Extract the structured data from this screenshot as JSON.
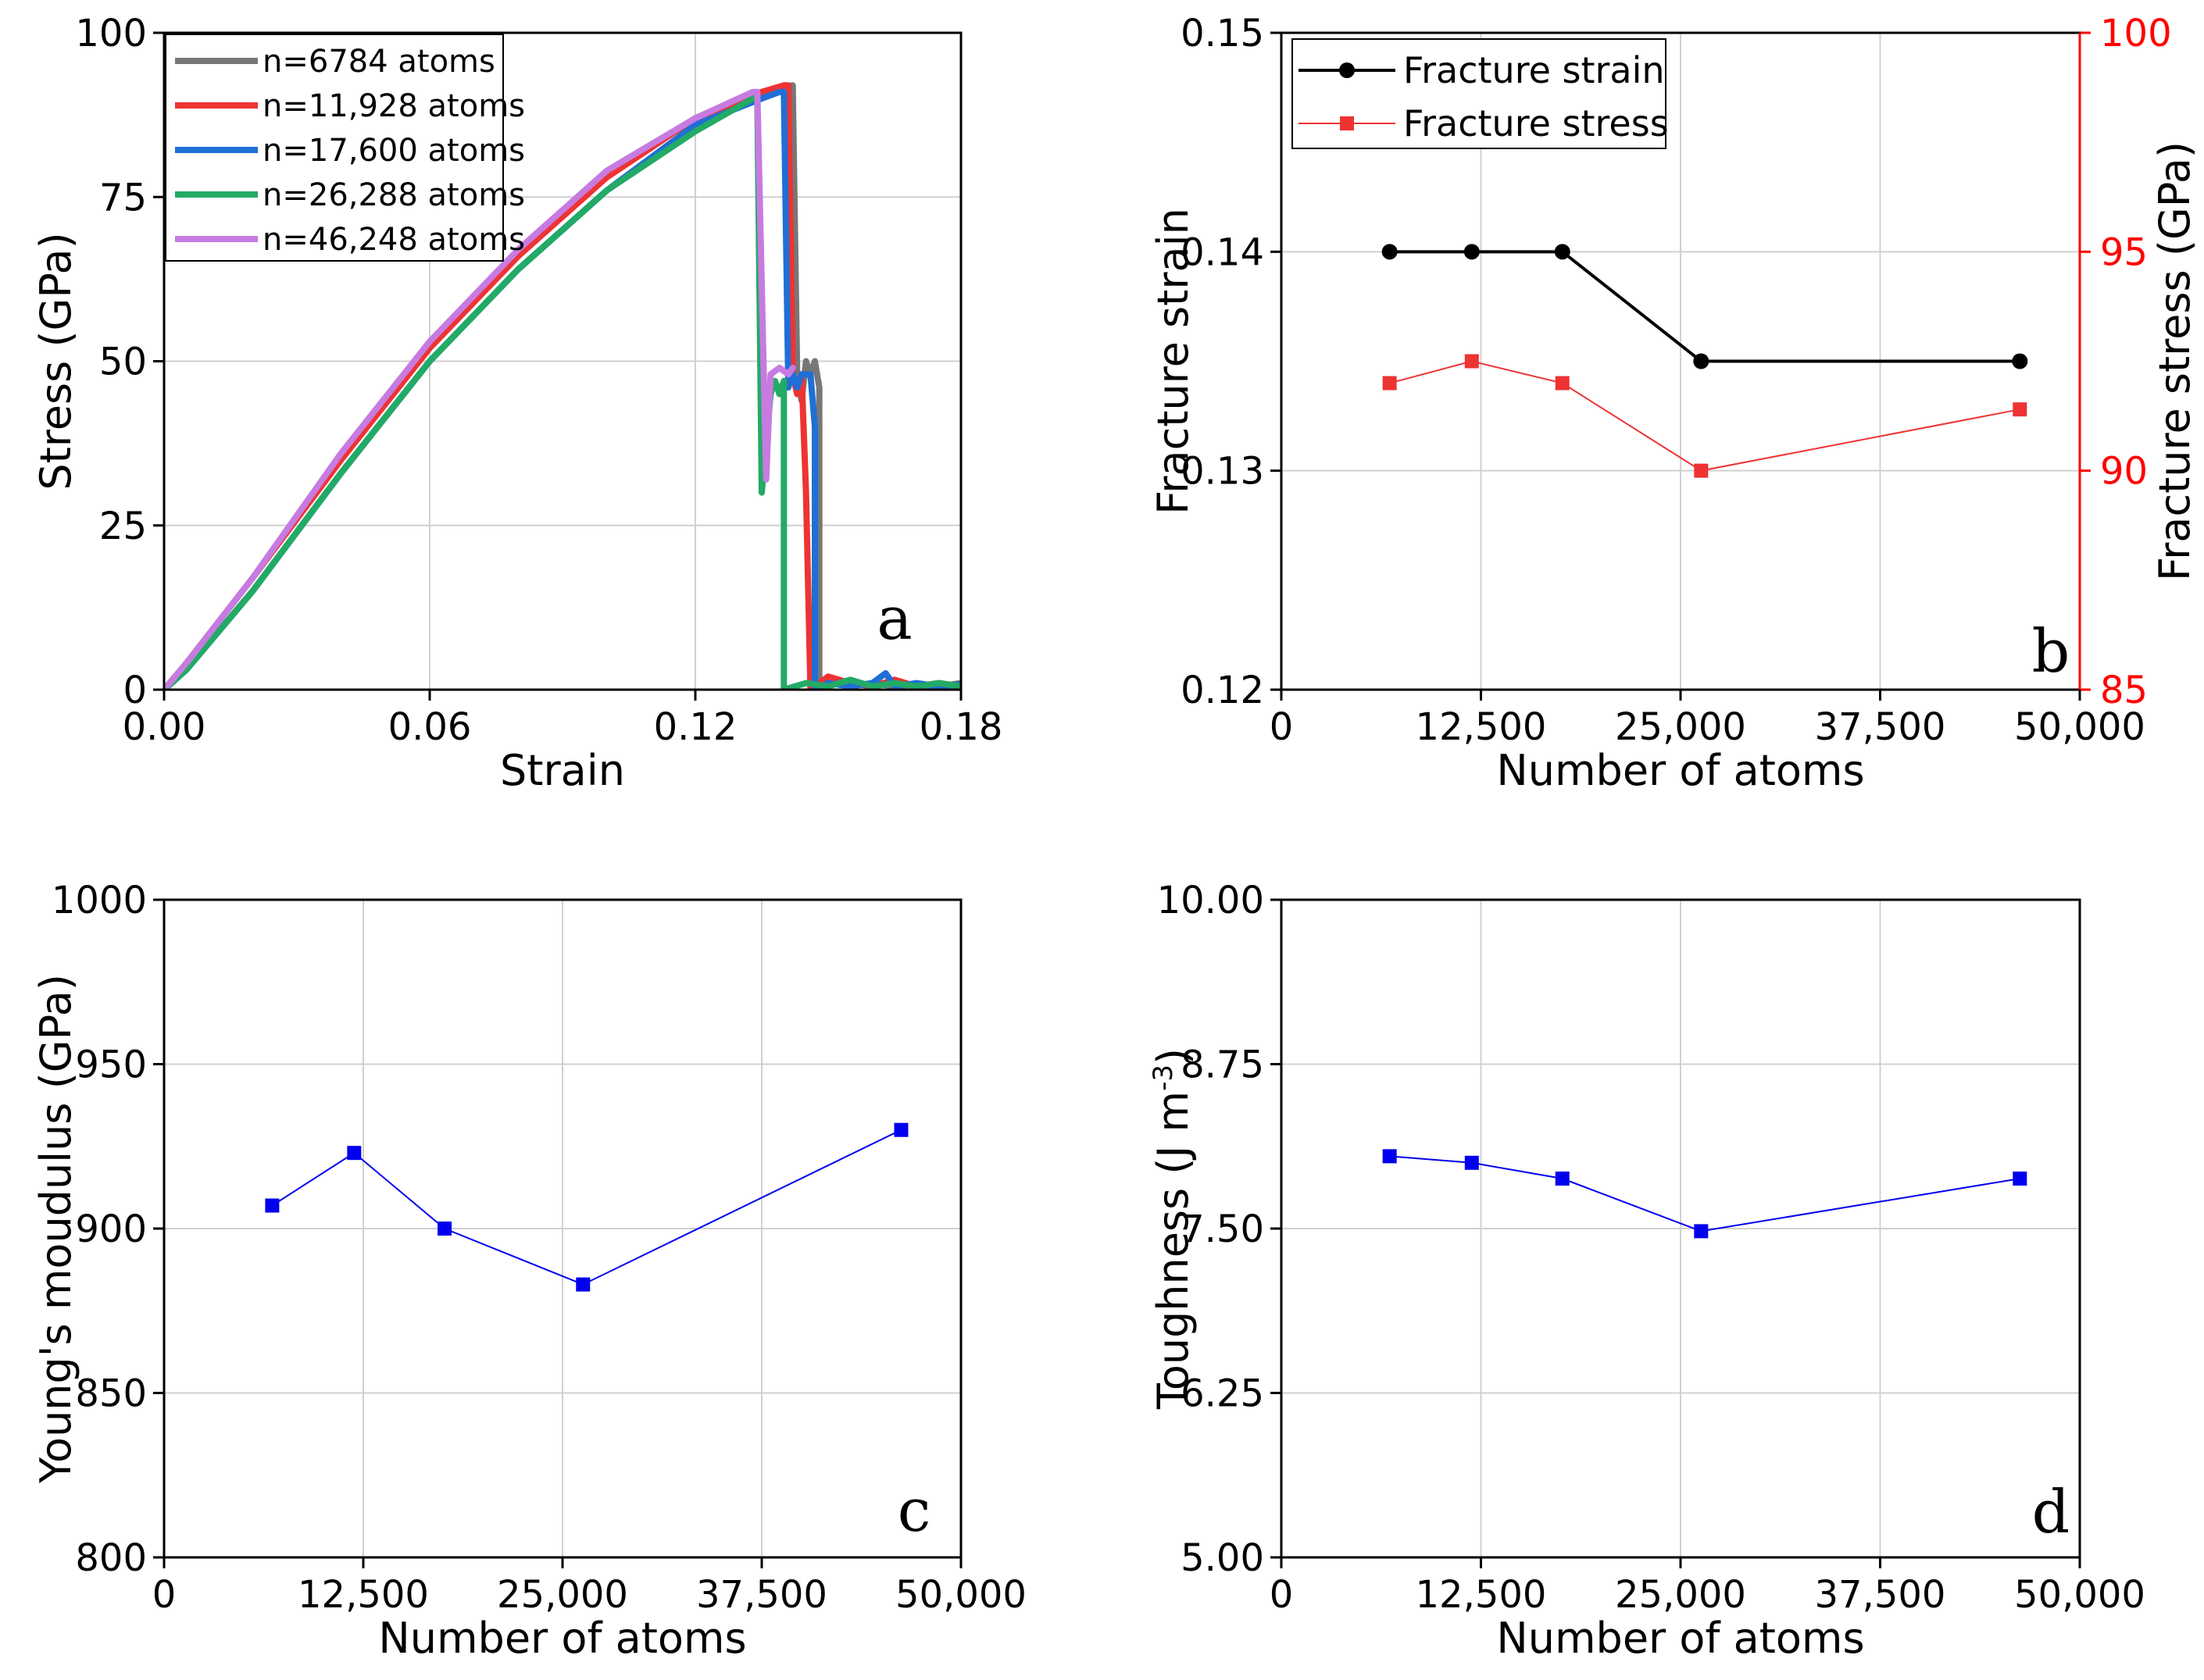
{
  "chart_data": [
    {
      "id": "a",
      "type": "line",
      "panel_letter": "a",
      "xlabel": "Strain",
      "ylabel": "Stress (GPa)",
      "xlim": [
        0.0,
        0.18
      ],
      "ylim": [
        0,
        100
      ],
      "xticks": [
        "0.00",
        "0.06",
        "0.12",
        "0.18"
      ],
      "yticks": [
        "0",
        "25",
        "50",
        "75",
        "100"
      ],
      "legend_position": "top-left",
      "series": [
        {
          "name": "n=6784 atoms",
          "color": "#777777",
          "x": [
            0.0,
            0.005,
            0.02,
            0.04,
            0.06,
            0.08,
            0.1,
            0.12,
            0.135,
            0.142,
            0.142,
            0.143,
            0.144,
            0.145,
            0.146,
            0.147,
            0.148,
            0.148,
            0.149,
            0.151,
            0.155,
            0.16,
            0.165,
            0.17,
            0.175,
            0.18
          ],
          "y": [
            0,
            3,
            15,
            33,
            50,
            64,
            76,
            86,
            91,
            92,
            92,
            48,
            44,
            50,
            48,
            50,
            46,
            0,
            0,
            1,
            0.5,
            1,
            0.5,
            0.8,
            0.5,
            1
          ]
        },
        {
          "name": "n=11,928 atoms",
          "color": "#ee3333",
          "x": [
            0.0,
            0.005,
            0.02,
            0.04,
            0.06,
            0.08,
            0.1,
            0.12,
            0.135,
            0.14,
            0.141,
            0.142,
            0.143,
            0.144,
            0.145,
            0.146,
            0.146,
            0.15,
            0.155,
            0.16,
            0.165,
            0.17,
            0.175,
            0.18
          ],
          "y": [
            0,
            4,
            17,
            35,
            52,
            66,
            78,
            87,
            91,
            92,
            92,
            48,
            45,
            48,
            30,
            0,
            0,
            2,
            1,
            0.5,
            1.5,
            0.5,
            1,
            0.5
          ]
        },
        {
          "name": "n=17,600 atoms",
          "color": "#1f6fd6",
          "x": [
            0.0,
            0.005,
            0.02,
            0.04,
            0.06,
            0.08,
            0.1,
            0.12,
            0.135,
            0.139,
            0.14,
            0.141,
            0.142,
            0.143,
            0.144,
            0.146,
            0.147,
            0.147,
            0.15,
            0.155,
            0.16,
            0.163,
            0.165,
            0.17,
            0.175,
            0.18
          ],
          "y": [
            0,
            3,
            15,
            33,
            50,
            64,
            76,
            86,
            90,
            91,
            91,
            46,
            48,
            46,
            48,
            48,
            40,
            0,
            1,
            0.5,
            1,
            2.5,
            0.5,
            1,
            0.5,
            0.8
          ]
        },
        {
          "name": "n=26,288 atoms",
          "color": "#22aa66",
          "x": [
            0.0,
            0.005,
            0.02,
            0.04,
            0.06,
            0.08,
            0.1,
            0.12,
            0.133,
            0.134,
            0.135,
            0.137,
            0.138,
            0.139,
            0.14,
            0.14,
            0.145,
            0.15,
            0.155,
            0.16,
            0.165,
            0.17,
            0.175,
            0.18
          ],
          "y": [
            0,
            3,
            15,
            33,
            50,
            64,
            76,
            85,
            90,
            90,
            30,
            45,
            47,
            45,
            47,
            0,
            1,
            0.5,
            1.5,
            0.5,
            1,
            0.5,
            1,
            0.5
          ]
        },
        {
          "name": "n=46,248 atoms",
          "color": "#c77be0",
          "x": [
            0.0,
            0.005,
            0.02,
            0.04,
            0.06,
            0.08,
            0.1,
            0.12,
            0.133,
            0.134,
            0.136,
            0.137,
            0.139,
            0.141,
            0.142
          ],
          "y": [
            0,
            4,
            17,
            36,
            53,
            67,
            79,
            87,
            91,
            91,
            32,
            48,
            49,
            48,
            49
          ]
        }
      ]
    },
    {
      "id": "b",
      "type": "line",
      "panel_letter": "b",
      "xlabel": "Number of atoms",
      "ylabel": "Fracture strain",
      "ylabel_right": "Fracture stress (GPa)",
      "xlim": [
        0,
        50000
      ],
      "ylim": [
        0.12,
        0.15
      ],
      "ylim_right": [
        85,
        100
      ],
      "xticks": [
        "0",
        "12,500",
        "25,000",
        "37,500",
        "50,000"
      ],
      "yticks": [
        "0.12",
        "0.13",
        "0.14",
        "0.15"
      ],
      "yticks_right": [
        "85",
        "90",
        "95",
        "100"
      ],
      "legend_position": "top-left",
      "x": [
        6784,
        11928,
        17600,
        26288,
        46248
      ],
      "series": [
        {
          "name": "Fracture strain",
          "color": "#000000",
          "axis": "left",
          "values": [
            0.14,
            0.14,
            0.14,
            0.135,
            0.135
          ]
        },
        {
          "name": "Fracture stress",
          "color": "#ee3333",
          "axis": "right",
          "values": [
            92.0,
            92.5,
            92.0,
            90.0,
            91.4
          ]
        }
      ]
    },
    {
      "id": "c",
      "type": "line",
      "panel_letter": "c",
      "xlabel": "Number of atoms",
      "ylabel": "Young's moudulus (GPa)",
      "xlim": [
        0,
        50000
      ],
      "ylim": [
        800,
        1000
      ],
      "xticks": [
        "0",
        "12,500",
        "25,000",
        "37,500",
        "50,000"
      ],
      "yticks": [
        "800",
        "850",
        "900",
        "950",
        "1000"
      ],
      "x": [
        6784,
        11928,
        17600,
        26288,
        46248
      ],
      "series": [
        {
          "name": "Young's moudulus",
          "color": "#0000ee",
          "values": [
            907,
            923,
            900,
            883,
            930
          ]
        }
      ]
    },
    {
      "id": "d",
      "type": "line",
      "panel_letter": "d",
      "xlabel": "Number of atoms",
      "ylabel": "Toughness (J m",
      "ylabel_sup": "-3",
      "ylabel_end": ")",
      "xlim": [
        0,
        50000
      ],
      "ylim": [
        5.0,
        10.0
      ],
      "xticks": [
        "0",
        "12,500",
        "25,000",
        "37,500",
        "50,000"
      ],
      "yticks": [
        "5.00",
        "6.25",
        "7.50",
        "8.75",
        "10.00"
      ],
      "x": [
        6784,
        11928,
        17600,
        26288,
        46248
      ],
      "series": [
        {
          "name": "Toughness",
          "color": "#0000ee",
          "values": [
            8.05,
            8.0,
            7.88,
            7.48,
            7.88
          ]
        }
      ]
    }
  ]
}
